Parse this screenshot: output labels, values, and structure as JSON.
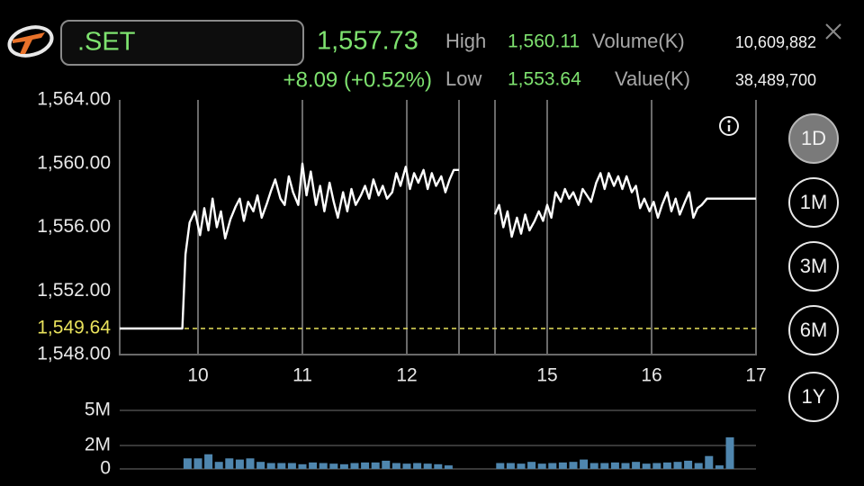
{
  "header": {
    "symbol": ".SET",
    "last": "1,557.73",
    "change": "+8.09 (+0.52%)",
    "high_label": "High",
    "high": "1,560.11",
    "low_label": "Low",
    "low": "1,553.64",
    "volume_label": "Volume(K)",
    "volume": "10,609,882",
    "value_label": "Value(K)",
    "value": "38,489,700"
  },
  "range_buttons": [
    "1D",
    "1M",
    "3M",
    "6M",
    "1Y"
  ],
  "selected_range": 0,
  "chart_data": [
    {
      "type": "line",
      "color": "#ffffff",
      "sessions": [
        [
          9.25,
          12.5
        ],
        [
          14.5,
          17
        ]
      ],
      "x": [
        9.25,
        9.85,
        9.88,
        9.92,
        9.97,
        10.02,
        10.06,
        10.1,
        10.14,
        10.18,
        10.22,
        10.26,
        10.31,
        10.36,
        10.4,
        10.44,
        10.48,
        10.53,
        10.57,
        10.61,
        10.66,
        10.7,
        10.74,
        10.79,
        10.83,
        10.87,
        10.91,
        10.96,
        11.0,
        11.04,
        11.08,
        11.13,
        11.17,
        11.21,
        11.26,
        11.3,
        11.34,
        11.39,
        11.43,
        11.47,
        11.51,
        11.56,
        11.6,
        11.64,
        11.68,
        11.73,
        11.77,
        11.81,
        11.86,
        11.9,
        11.94,
        11.99,
        12.03,
        12.07,
        12.11,
        12.16,
        12.2,
        12.24,
        12.28,
        12.33,
        12.37,
        12.41,
        12.45,
        12.5,
        14.5,
        14.54,
        14.58,
        14.62,
        14.66,
        14.71,
        14.75,
        14.79,
        14.83,
        14.88,
        14.92,
        14.96,
        15.0,
        15.04,
        15.08,
        15.13,
        15.17,
        15.21,
        15.25,
        15.3,
        15.34,
        15.38,
        15.42,
        15.47,
        15.51,
        15.55,
        15.59,
        15.64,
        15.68,
        15.72,
        15.76,
        15.81,
        15.85,
        15.89,
        15.93,
        15.98,
        16.02,
        16.06,
        16.1,
        16.15,
        16.19,
        16.23,
        16.27,
        16.32,
        16.36,
        16.4,
        16.44,
        16.48,
        16.53,
        16.6,
        17.0
      ],
      "values": [
        1549.64,
        1549.64,
        1554.3,
        1556.3,
        1557.0,
        1555.5,
        1557.2,
        1555.8,
        1557.8,
        1556.0,
        1557.0,
        1555.3,
        1556.5,
        1557.3,
        1557.8,
        1556.4,
        1557.6,
        1557.0,
        1558.0,
        1556.6,
        1557.5,
        1558.3,
        1559.0,
        1557.8,
        1557.4,
        1559.2,
        1558.2,
        1557.4,
        1560.0,
        1558.0,
        1559.5,
        1557.4,
        1558.6,
        1557.0,
        1558.8,
        1557.6,
        1556.6,
        1558.2,
        1557.0,
        1558.4,
        1557.4,
        1558.0,
        1558.6,
        1557.8,
        1559.0,
        1558.0,
        1558.6,
        1557.8,
        1558.2,
        1559.4,
        1558.6,
        1559.8,
        1558.4,
        1559.4,
        1558.8,
        1559.6,
        1558.4,
        1559.4,
        1558.6,
        1559.2,
        1558.2,
        1559.0,
        1559.6,
        1559.6,
        1556.8,
        1557.4,
        1556.0,
        1557.0,
        1555.4,
        1556.6,
        1555.6,
        1556.8,
        1555.8,
        1556.4,
        1557.0,
        1556.4,
        1557.4,
        1556.6,
        1558.2,
        1557.6,
        1558.4,
        1557.8,
        1558.2,
        1557.4,
        1558.4,
        1558.0,
        1557.6,
        1558.8,
        1559.4,
        1558.4,
        1559.4,
        1558.6,
        1559.2,
        1558.4,
        1559.2,
        1558.2,
        1558.6,
        1557.2,
        1557.8,
        1557.0,
        1557.6,
        1556.6,
        1557.4,
        1558.2,
        1557.0,
        1557.8,
        1556.8,
        1557.6,
        1558.2,
        1556.6,
        1557.2,
        1557.4,
        1557.8,
        1557.8,
        1557.8
      ],
      "ylim": [
        1548,
        1564
      ],
      "yticks": [
        {
          "value": 1548,
          "label": "1,548.00"
        },
        {
          "value": 1552,
          "label": "1,552.00"
        },
        {
          "value": 1556,
          "label": "1,556.00"
        },
        {
          "value": 1560,
          "label": "1,560.00"
        },
        {
          "value": 1564,
          "label": "1,564.00"
        }
      ],
      "xticks": [
        10,
        11,
        12,
        15,
        16,
        17
      ],
      "grid": "x",
      "reference_line": {
        "value": 1549.64,
        "label": "1,549.64",
        "color": "#e9e25c"
      }
    },
    {
      "type": "bar",
      "color": "#4f86ae",
      "sessions": [
        [
          9.25,
          12.5
        ],
        [
          14.5,
          17
        ]
      ],
      "x": [
        9.9,
        10.0,
        10.1,
        10.2,
        10.3,
        10.4,
        10.5,
        10.6,
        10.7,
        10.8,
        10.9,
        11.0,
        11.1,
        11.2,
        11.3,
        11.4,
        11.5,
        11.6,
        11.7,
        11.8,
        11.9,
        12.0,
        12.1,
        12.2,
        12.3,
        12.4,
        14.55,
        14.65,
        14.75,
        14.85,
        14.95,
        15.05,
        15.15,
        15.25,
        15.35,
        15.45,
        15.55,
        15.65,
        15.75,
        15.85,
        15.95,
        16.05,
        16.15,
        16.25,
        16.35,
        16.45,
        16.55,
        16.65,
        16.75
      ],
      "values": [
        900000,
        900000,
        1250000,
        600000,
        900000,
        800000,
        900000,
        600000,
        500000,
        500000,
        500000,
        400000,
        550000,
        500000,
        450000,
        400000,
        500000,
        550000,
        550000,
        700000,
        500000,
        450000,
        500000,
        450000,
        400000,
        300000,
        500000,
        500000,
        450000,
        600000,
        450000,
        500000,
        550000,
        600000,
        800000,
        500000,
        500000,
        550000,
        500000,
        600000,
        450000,
        500000,
        550000,
        600000,
        700000,
        500000,
        1100000,
        300000,
        2700000
      ],
      "ylim": [
        0,
        5000000
      ],
      "yticks": [
        0,
        {
          "value": 2000000,
          "label": "2M"
        },
        {
          "value": 5000000,
          "label": "5M"
        }
      ],
      "grid": "y"
    }
  ]
}
